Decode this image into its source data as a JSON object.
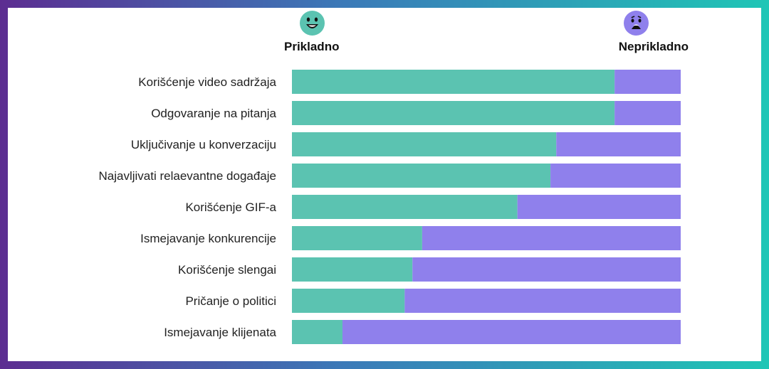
{
  "colors": {
    "appropriate": "#5bc3b1",
    "inappropriate": "#8f80ec",
    "text": "#222222"
  },
  "legend": {
    "left_label": "Prikladno",
    "right_label": "Neprikladno",
    "left_icon": "happy-face-icon",
    "right_icon": "shocked-face-icon"
  },
  "chart_data": {
    "type": "bar",
    "orientation": "horizontal",
    "stacked": true,
    "normalized": true,
    "categories": [
      "Korišćenje video sadržaja",
      "Odgovaranje na pitanja",
      "Uključivanje u konverzaciju",
      "Najavljivati relaevantne događaje",
      "Korišćenje GIF-a",
      "Ismejavanje konkurencije",
      "Korišćenje slengai",
      "Pričanje o politici",
      "Ismejavanje klijenata"
    ],
    "series": [
      {
        "name": "Prikladno",
        "values": [
          83,
          83,
          68,
          66.5,
          58,
          33.5,
          31,
          29,
          13
        ]
      },
      {
        "name": "Neprikladno",
        "values": [
          17,
          17,
          32,
          33.5,
          42,
          66.5,
          69,
          71,
          87
        ]
      }
    ],
    "xlim": [
      0,
      100
    ],
    "grid": false
  }
}
